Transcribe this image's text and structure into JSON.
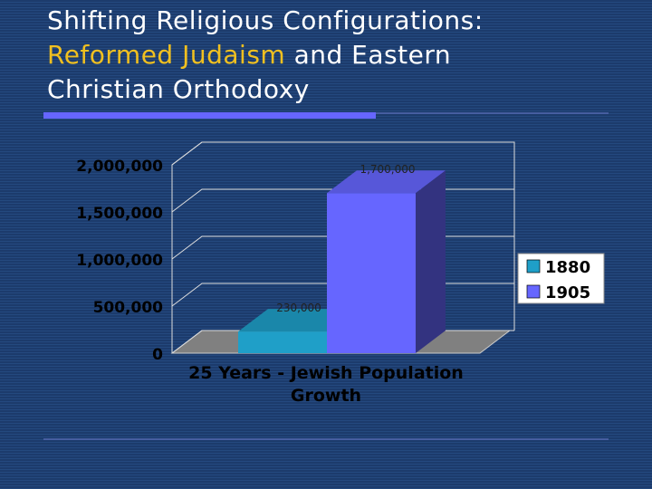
{
  "slide": {
    "title_parts": [
      "Shifting Religious Configurations:",
      "Reformed Judaism",
      "and Eastern",
      "Christian Orthodoxy"
    ]
  },
  "chart_data": {
    "type": "bar3d",
    "categories": [
      "25 Years - Jewish Population Growth"
    ],
    "series": [
      {
        "name": "1880",
        "color": "#1f9fc8",
        "values": [
          230000
        ],
        "value_labels": [
          "230,000"
        ]
      },
      {
        "name": "1905",
        "color": "#6666ff",
        "values": [
          1700000
        ],
        "value_labels": [
          "1,700,000"
        ]
      }
    ],
    "ylim": [
      0,
      2000000
    ],
    "yticks": [
      {
        "value": 0,
        "label": "0"
      },
      {
        "value": 500000,
        "label": "500,000"
      },
      {
        "value": 1000000,
        "label": "1,000,000"
      },
      {
        "value": 1500000,
        "label": "1,500,000"
      },
      {
        "value": 2000000,
        "label": "2,000,000"
      }
    ],
    "grid": true,
    "legend": "right"
  }
}
